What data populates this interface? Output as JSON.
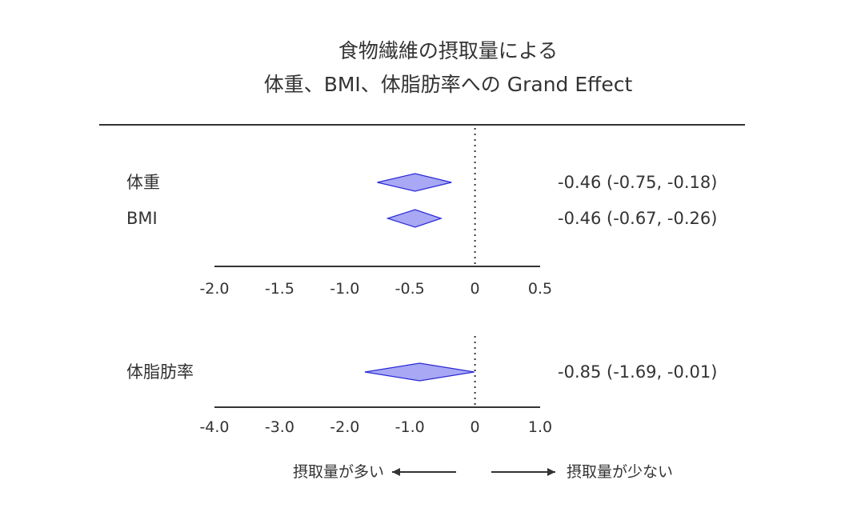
{
  "title_lines": [
    "食物繊維の摂取量による",
    "体重、BMI、体脂肪率への Grand Effect"
  ],
  "chart_data": [
    {
      "type": "forest",
      "xlim": [
        -2.0,
        0.5
      ],
      "ticks": [
        -2.0,
        -1.5,
        -1.0,
        -0.5,
        0,
        0.5
      ],
      "tick_labels": [
        "-2.0",
        "-1.5",
        "-1.0",
        "-0.5",
        "0",
        "0.5"
      ],
      "reference_line": 0,
      "rows": [
        {
          "label": "体重",
          "estimate": -0.46,
          "lower": -0.75,
          "upper": -0.18,
          "ci_text": "-0.46 (-0.75, -0.18)"
        },
        {
          "label": "BMI",
          "estimate": -0.46,
          "lower": -0.67,
          "upper": -0.26,
          "ci_text": "-0.46 (-0.67, -0.26)"
        }
      ],
      "marker_fill": "#a8a8f4",
      "marker_stroke": "#2a2ad8"
    },
    {
      "type": "forest",
      "xlim": [
        -4.0,
        1.0
      ],
      "ticks": [
        -4.0,
        -3.0,
        -2.0,
        -1.0,
        0,
        1.0
      ],
      "tick_labels": [
        "-4.0",
        "-3.0",
        "-2.0",
        "-1.0",
        "0",
        "1.0"
      ],
      "reference_line": 0,
      "rows": [
        {
          "label": "体脂肪率",
          "estimate": -0.85,
          "lower": -1.69,
          "upper": -0.01,
          "ci_text": "-0.85 (-1.69, -0.01)"
        }
      ],
      "marker_fill": "#a8a8f4",
      "marker_stroke": "#2a2ad8"
    }
  ],
  "direction": {
    "left_label": "摂取量が多い",
    "right_label": "摂取量が少ない"
  },
  "colors": {
    "text": "#333333",
    "axis": "#333333"
  }
}
